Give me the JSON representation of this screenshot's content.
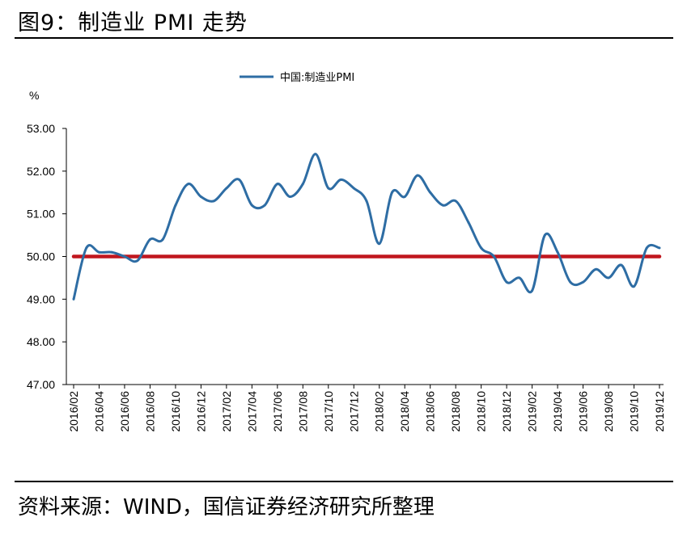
{
  "figure": {
    "title": "图9：制造业 PMI 走势",
    "source": "资料来源：WIND，国信证券经济研究所整理"
  },
  "chart_data": {
    "type": "line",
    "ylabel": "%",
    "ylim": [
      47,
      53
    ],
    "yticks": [
      "47.00",
      "48.00",
      "49.00",
      "50.00",
      "51.00",
      "52.00",
      "53.00"
    ],
    "x": [
      "2016/02",
      "2016/03",
      "2016/04",
      "2016/05",
      "2016/06",
      "2016/07",
      "2016/08",
      "2016/09",
      "2016/10",
      "2016/11",
      "2016/12",
      "2017/01",
      "2017/02",
      "2017/03",
      "2017/04",
      "2017/05",
      "2017/06",
      "2017/07",
      "2017/08",
      "2017/09",
      "2017/10",
      "2017/11",
      "2017/12",
      "2018/01",
      "2018/02",
      "2018/03",
      "2018/04",
      "2018/05",
      "2018/06",
      "2018/07",
      "2018/08",
      "2018/09",
      "2018/10",
      "2018/11",
      "2018/12",
      "2019/01",
      "2019/02",
      "2019/03",
      "2019/04",
      "2019/05",
      "2019/06",
      "2019/07",
      "2019/08",
      "2019/09",
      "2019/10",
      "2019/11",
      "2019/12"
    ],
    "xtick_labels": [
      "2016/02",
      "2016/04",
      "2016/06",
      "2016/08",
      "2016/10",
      "2016/12",
      "2017/02",
      "2017/04",
      "2017/06",
      "2017/08",
      "2017/10",
      "2017/12",
      "2018/02",
      "2018/04",
      "2018/06",
      "2018/08",
      "2018/10",
      "2018/12",
      "2019/02",
      "2019/04",
      "2019/06",
      "2019/08",
      "2019/10",
      "2019/12"
    ],
    "series": [
      {
        "name": "中国:制造业PMI",
        "color": "#2e6da4",
        "values": [
          49.0,
          50.2,
          50.1,
          50.1,
          50.0,
          49.9,
          50.4,
          50.4,
          51.2,
          51.7,
          51.4,
          51.3,
          51.6,
          51.8,
          51.2,
          51.2,
          51.7,
          51.4,
          51.7,
          52.4,
          51.6,
          51.8,
          51.6,
          51.3,
          50.3,
          51.5,
          51.4,
          51.9,
          51.5,
          51.2,
          51.3,
          50.8,
          50.2,
          50.0,
          49.4,
          49.5,
          49.2,
          50.5,
          50.1,
          49.4,
          49.4,
          49.7,
          49.5,
          49.8,
          49.3,
          50.2,
          50.2
        ]
      }
    ],
    "reference_line": {
      "value": 50,
      "color": "#c0161e"
    },
    "grid": false,
    "legend_position": "top-center"
  }
}
